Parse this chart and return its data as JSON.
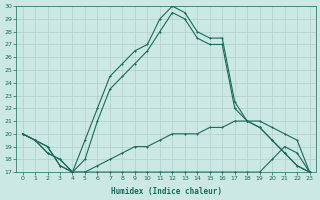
{
  "xlabel": "Humidex (Indice chaleur)",
  "bg_color": "#cce8e4",
  "line_color": "#1a6b5a",
  "grid_color": "#b0d0cc",
  "x": [
    0,
    1,
    2,
    3,
    4,
    5,
    6,
    7,
    8,
    9,
    10,
    11,
    12,
    13,
    14,
    15,
    16,
    17,
    18,
    19,
    20,
    21,
    22,
    23
  ],
  "line1": [
    20.0,
    19.5,
    19.0,
    17.5,
    17.0,
    19.5,
    22.0,
    24.5,
    25.5,
    26.5,
    27.0,
    29.0,
    30.0,
    29.5,
    28.0,
    27.5,
    27.5,
    22.5,
    21.0,
    20.5,
    19.5,
    18.5,
    17.5,
    17.0
  ],
  "line2": [
    20.0,
    19.5,
    19.0,
    17.5,
    17.0,
    18.0,
    21.0,
    23.5,
    24.5,
    25.5,
    26.5,
    28.0,
    29.5,
    29.0,
    27.5,
    27.0,
    27.0,
    22.0,
    21.0,
    20.5,
    19.5,
    18.5,
    17.5,
    17.0
  ],
  "line3": [
    20.0,
    19.5,
    18.5,
    18.0,
    17.0,
    17.0,
    17.5,
    18.0,
    18.5,
    19.0,
    19.0,
    19.5,
    20.0,
    20.0,
    20.0,
    20.5,
    20.5,
    21.0,
    21.0,
    21.0,
    20.5,
    20.0,
    19.5,
    17.0
  ],
  "line4": [
    20.0,
    19.5,
    18.5,
    18.0,
    17.0,
    17.0,
    17.0,
    17.0,
    17.0,
    17.0,
    17.0,
    17.0,
    17.0,
    17.0,
    17.0,
    17.0,
    17.0,
    17.0,
    17.0,
    17.0,
    18.0,
    19.0,
    18.5,
    17.0
  ],
  "ylim": [
    17,
    30
  ],
  "xlim": [
    -0.5,
    23.5
  ],
  "yticks": [
    17,
    18,
    19,
    20,
    21,
    22,
    23,
    24,
    25,
    26,
    27,
    28,
    29,
    30
  ],
  "xticks": [
    0,
    1,
    2,
    3,
    4,
    5,
    6,
    7,
    8,
    9,
    10,
    11,
    12,
    13,
    14,
    15,
    16,
    17,
    18,
    19,
    20,
    21,
    22,
    23
  ]
}
